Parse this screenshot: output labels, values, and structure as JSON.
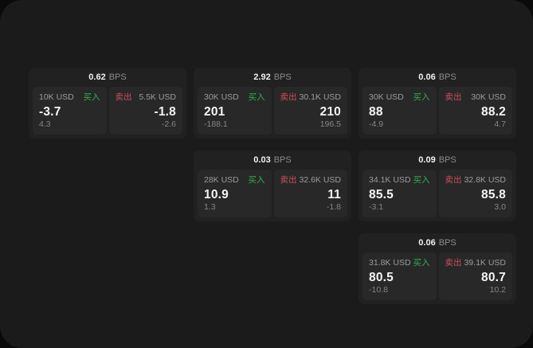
{
  "labels": {
    "buy": "买入",
    "sell": "卖出",
    "bps": "BPS"
  },
  "colors": {
    "backdrop": "#0a0a0a",
    "surface": "#1b1b1c",
    "card": "#212121",
    "tile": "#282828",
    "buy_green": "#2fae55",
    "sell_red": "#cc4e5d",
    "value_white": "#f5f5f5",
    "muted_gray": "#9c9c9c"
  },
  "cards": [
    {
      "bps_value": "0.62",
      "grid": {
        "col": 1,
        "row": 1
      },
      "buy": {
        "amount": "10K USD",
        "value": "-3.7",
        "sub_value": "4.3"
      },
      "sell": {
        "amount": "5.5K USD",
        "value": "-1.8",
        "sub_value": "-2.6"
      }
    },
    {
      "bps_value": "2.92",
      "grid": {
        "col": 2,
        "row": 1
      },
      "buy": {
        "amount": "30K USD",
        "value": "201",
        "sub_value": "-188.1"
      },
      "sell": {
        "amount": "30.1K USD",
        "value": "210",
        "sub_value": "196.5"
      }
    },
    {
      "bps_value": "0.06",
      "grid": {
        "col": 3,
        "row": 1
      },
      "buy": {
        "amount": "30K USD",
        "value": "88",
        "sub_value": "-4.9"
      },
      "sell": {
        "amount": "30K USD",
        "value": "88.2",
        "sub_value": "4.7"
      }
    },
    {
      "bps_value": "0.03",
      "grid": {
        "col": 2,
        "row": 2
      },
      "buy": {
        "amount": "28K USD",
        "value": "10.9",
        "sub_value": "1.3"
      },
      "sell": {
        "amount": "32.6K USD",
        "value": "11",
        "sub_value": "-1.8"
      }
    },
    {
      "bps_value": "0.09",
      "grid": {
        "col": 3,
        "row": 2
      },
      "buy": {
        "amount": "34.1K USD",
        "value": "85.5",
        "sub_value": "-3.1"
      },
      "sell": {
        "amount": "32.8K USD",
        "value": "85.8",
        "sub_value": "3.0"
      }
    },
    {
      "bps_value": "0.06",
      "grid": {
        "col": 3,
        "row": 3
      },
      "buy": {
        "amount": "31.8K USD",
        "value": "80.5",
        "sub_value": "-10.8"
      },
      "sell": {
        "amount": "39.1K USD",
        "value": "80.7",
        "sub_value": "10.2"
      }
    }
  ]
}
